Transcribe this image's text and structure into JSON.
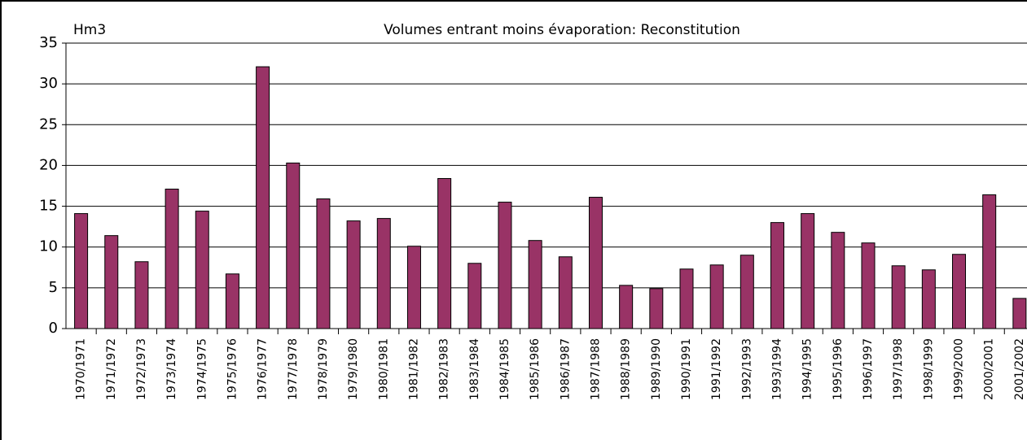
{
  "chart_data": {
    "type": "bar",
    "title": "Volumes entrant moins évaporation: Reconstitution",
    "y_label": "Hm3",
    "categories": [
      "1970/1971",
      "1971/1972",
      "1972/1973",
      "1973/1974",
      "1974/1975",
      "1975/1976",
      "1976/1977",
      "1977/1978",
      "1978/1979",
      "1979/1980",
      "1980/1981",
      "1981/1982",
      "1982/1983",
      "1983/1984",
      "1984/1985",
      "1985/1986",
      "1986/1987",
      "1987/1988",
      "1988/1989",
      "1989/1990",
      "1990/1991",
      "1991/1992",
      "1992/1993",
      "1993/1994",
      "1994/1995",
      "1995/1996",
      "1996/1997",
      "1997/1998",
      "1998/1999",
      "1999/2000",
      "2000/2001",
      "2001/2002"
    ],
    "values": [
      14.1,
      11.4,
      8.2,
      17.1,
      14.4,
      6.7,
      32.1,
      20.3,
      15.9,
      13.2,
      13.5,
      10.1,
      18.4,
      8.0,
      15.5,
      10.8,
      8.8,
      16.1,
      5.3,
      4.9,
      7.3,
      7.8,
      9.0,
      13.0,
      14.1,
      11.8,
      10.5,
      7.7,
      7.2,
      9.1,
      16.4,
      3.7
    ],
    "color": "#993366",
    "ylim": [
      0,
      35
    ],
    "yticks": [
      0,
      5,
      10,
      15,
      20,
      25,
      30,
      35
    ],
    "grid": true
  }
}
